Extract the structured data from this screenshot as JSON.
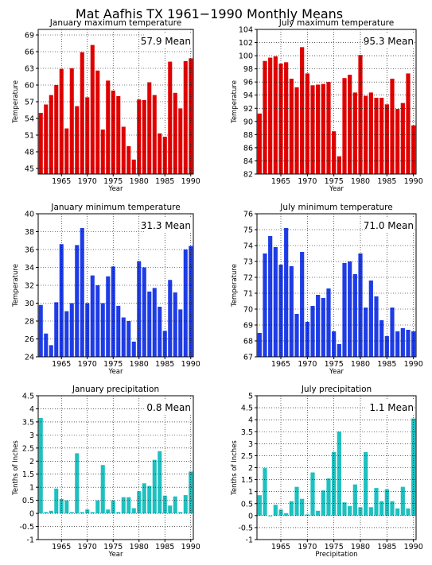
{
  "title": "Mat Aafhis TX   1961−1990 Monthly Means",
  "colors": {
    "red": "#e00000",
    "blue": "#1e3ce6",
    "teal": "#1ec0c0"
  },
  "years": [
    1961,
    1962,
    1963,
    1964,
    1965,
    1966,
    1967,
    1968,
    1969,
    1970,
    1971,
    1972,
    1973,
    1974,
    1975,
    1976,
    1977,
    1978,
    1979,
    1980,
    1981,
    1982,
    1983,
    1984,
    1985,
    1986,
    1987,
    1988,
    1989,
    1990
  ],
  "chart_data": [
    {
      "type": "bar",
      "title": "January maximum temperature",
      "mean_label": "57.9 Mean",
      "xlabel": "Year",
      "ylabel": "Temperature",
      "color": "red",
      "ylim": [
        44,
        70
      ],
      "yticks": [
        45,
        48,
        51,
        54,
        57,
        60,
        63,
        66,
        69
      ],
      "xticks": [
        1965,
        1970,
        1975,
        1980,
        1985,
        1990
      ],
      "values": [
        55.0,
        56.5,
        58.2,
        60.0,
        62.9,
        52.2,
        63.0,
        56.2,
        65.9,
        57.8,
        67.2,
        62.6,
        52.0,
        60.8,
        59.0,
        58.0,
        52.5,
        49.0,
        46.6,
        57.4,
        57.3,
        60.5,
        58.2,
        51.3,
        50.7,
        64.2,
        58.6,
        55.8,
        64.3,
        64.8
      ]
    },
    {
      "type": "bar",
      "title": "July maximum temperature",
      "mean_label": "95.3 Mean",
      "xlabel": "Year",
      "ylabel": "Temperature",
      "color": "red",
      "ylim": [
        82,
        104
      ],
      "yticks": [
        82,
        84,
        86,
        88,
        90,
        92,
        94,
        96,
        98,
        100,
        102,
        104
      ],
      "xticks": [
        1965,
        1970,
        1975,
        1980,
        1985,
        1990
      ],
      "values": [
        91.2,
        99.2,
        99.7,
        99.9,
        98.8,
        99.0,
        96.5,
        95.2,
        101.3,
        97.3,
        95.5,
        95.6,
        95.7,
        96.0,
        88.5,
        84.7,
        96.6,
        97.1,
        94.4,
        100.1,
        93.9,
        94.4,
        93.6,
        93.6,
        92.6,
        96.5,
        91.9,
        92.8,
        97.3,
        89.4
      ]
    },
    {
      "type": "bar",
      "title": "January minimum temperature",
      "mean_label": "31.3 Mean",
      "xlabel": "Year",
      "ylabel": "Temperature",
      "color": "blue",
      "ylim": [
        24,
        40
      ],
      "yticks": [
        24,
        26,
        28,
        30,
        32,
        34,
        36,
        38,
        40
      ],
      "xticks": [
        1965,
        1970,
        1975,
        1980,
        1985,
        1990
      ],
      "values": [
        29.8,
        26.6,
        25.3,
        30.1,
        36.6,
        29.1,
        30.0,
        36.5,
        38.4,
        30.0,
        33.1,
        32.0,
        30.0,
        33.0,
        34.1,
        29.7,
        28.4,
        28.0,
        25.7,
        34.7,
        34.0,
        31.3,
        31.7,
        29.6,
        26.9,
        32.6,
        31.2,
        29.3,
        36.0,
        36.4
      ]
    },
    {
      "type": "bar",
      "title": "July minimum temperature",
      "mean_label": "71.0 Mean",
      "xlabel": "Year",
      "ylabel": "Temperature",
      "color": "blue",
      "ylim": [
        67,
        76
      ],
      "yticks": [
        67,
        68,
        69,
        70,
        71,
        72,
        73,
        74,
        75,
        76
      ],
      "xticks": [
        1965,
        1970,
        1975,
        1980,
        1985,
        1990
      ],
      "values": [
        68.5,
        73.5,
        74.6,
        73.9,
        72.8,
        75.1,
        72.7,
        69.7,
        73.6,
        69.2,
        70.2,
        70.9,
        70.7,
        71.3,
        68.6,
        67.8,
        72.9,
        73.0,
        72.2,
        73.5,
        70.1,
        71.8,
        70.8,
        69.3,
        68.3,
        70.1,
        68.6,
        68.8,
        68.7,
        68.6
      ]
    },
    {
      "type": "bar",
      "title": "January precipitation",
      "mean_label": "0.8 Mean",
      "xlabel": "Year",
      "ylabel": "Tenths of Inches",
      "color": "teal",
      "ylim": [
        -1,
        4.5
      ],
      "yticks": [
        -1,
        -0.5,
        0,
        0.5,
        1,
        1.5,
        2,
        2.5,
        3,
        3.5,
        4,
        4.5
      ],
      "xticks": [
        1965,
        1970,
        1975,
        1980,
        1985,
        1990
      ],
      "values": [
        3.65,
        0.05,
        0.1,
        0.95,
        0.55,
        0.5,
        0.05,
        2.3,
        0.05,
        0.15,
        0.05,
        0.5,
        1.85,
        0.15,
        0.5,
        0.05,
        0.62,
        0.62,
        0.2,
        0.85,
        1.15,
        1.05,
        2.05,
        2.38,
        0.68,
        0.3,
        0.65,
        0.05,
        0.7,
        1.6
      ]
    },
    {
      "type": "bar",
      "title": "July precipitation",
      "mean_label": "1.1 Mean",
      "xlabel": "Precipitation",
      "ylabel": "Tenths of Inches",
      "color": "teal",
      "ylim": [
        -1,
        5
      ],
      "yticks": [
        -1,
        -0.5,
        0,
        0.5,
        1,
        1.5,
        2,
        2.5,
        3,
        3.5,
        4,
        4.5,
        5
      ],
      "xticks": [
        1965,
        1970,
        1975,
        1980,
        1985,
        1990
      ],
      "values": [
        0.85,
        1.98,
        0.0,
        0.45,
        0.25,
        0.1,
        0.6,
        1.2,
        0.7,
        0.05,
        1.8,
        0.2,
        1.05,
        1.55,
        2.65,
        3.5,
        0.55,
        0.4,
        1.3,
        0.35,
        2.65,
        0.35,
        1.15,
        0.6,
        1.1,
        0.6,
        0.3,
        1.2,
        0.3,
        4.05
      ]
    }
  ]
}
